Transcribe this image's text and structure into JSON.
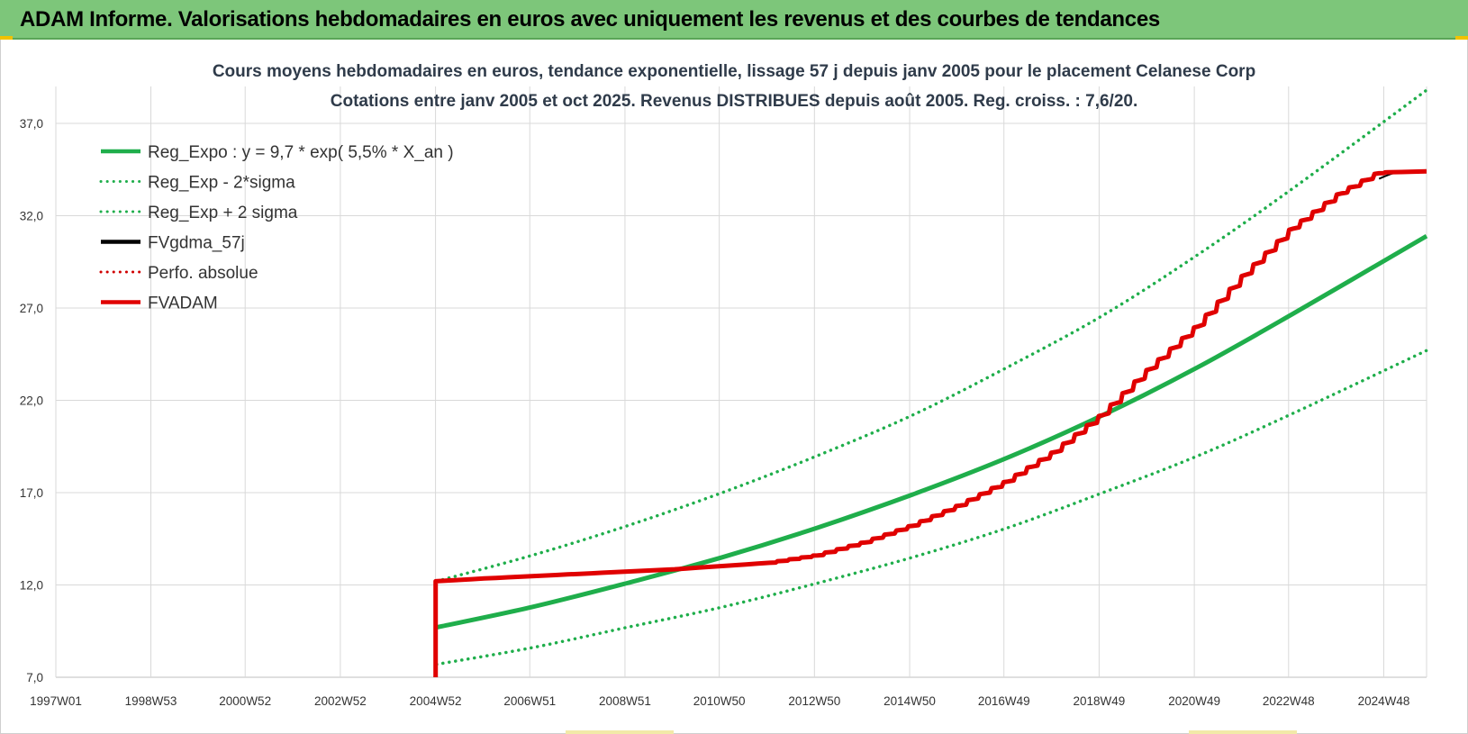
{
  "banner": {
    "title": "ADAM Informe. Valorisations hebdomadaires en euros avec uniquement les revenus et des courbes de tendances",
    "color": "#7dc67a"
  },
  "chart_data": {
    "type": "line",
    "title": "Cours moyens hebdomadaires en euros, tendance exponentielle, lissage 57 j depuis janv 2005  pour le placement Celanese Corp",
    "subtitle": "Cotations entre janv 2005 et oct 2025. Revenus DISTRIBUES depuis août 2005. Reg. croiss. : 7,6/20.",
    "x_tick_labels": [
      "1997W01",
      "1998W53",
      "2000W52",
      "2002W52",
      "2004W52",
      "2006W51",
      "2008W51",
      "2010W50",
      "2012W50",
      "2014W50",
      "2016W49",
      "2018W49",
      "2020W49",
      "2022W48",
      "2024W48"
    ],
    "y_tick_labels": [
      "7,0",
      "12,0",
      "17,0",
      "22,0",
      "27,0",
      "32,0",
      "37,0"
    ],
    "xlim": [
      1997.0,
      2025.8
    ],
    "ylim": [
      7,
      39
    ],
    "grid": true,
    "legend_position": "top-left",
    "series": [
      {
        "name": "Reg_Expo : y = 9,7 * exp( 5,5% *  X_an )",
        "color": "#1fae4b",
        "style": "solid",
        "width": 5,
        "x": [
          2005.0,
          2007.0,
          2009.0,
          2011.0,
          2013.0,
          2015.0,
          2017.0,
          2019.0,
          2021.0,
          2023.0,
          2025.8
        ],
        "y": [
          9.7,
          10.8,
          12.1,
          13.5,
          15.1,
          16.9,
          18.9,
          21.2,
          23.8,
          26.7,
          30.9
        ]
      },
      {
        "name": "Reg_Exp - 2*sigma",
        "color": "#1fae4b",
        "style": "dotted",
        "width": 3.5,
        "x": [
          2005.0,
          2007.0,
          2009.0,
          2011.0,
          2013.0,
          2015.0,
          2017.0,
          2019.0,
          2021.0,
          2023.0,
          2025.8
        ],
        "y": [
          7.7,
          8.6,
          9.7,
          10.8,
          12.1,
          13.5,
          15.1,
          17.0,
          19.0,
          21.3,
          24.7
        ]
      },
      {
        "name": "Reg_Exp + 2 sigma",
        "color": "#1fae4b",
        "style": "dotted",
        "width": 3.5,
        "x": [
          2005.0,
          2007.0,
          2009.0,
          2011.0,
          2013.0,
          2015.0,
          2017.0,
          2019.0,
          2021.0,
          2023.0,
          2025.8
        ],
        "y": [
          12.2,
          13.6,
          15.2,
          17.0,
          19.0,
          21.2,
          23.8,
          26.6,
          29.9,
          33.5,
          38.8
        ]
      },
      {
        "name": "FVgdma_57j",
        "color": "#000000",
        "style": "solid",
        "width": 2,
        "x": [
          2024.8,
          2025.1,
          2025.4,
          2025.8
        ],
        "y": [
          34.0,
          34.3,
          34.4,
          34.4
        ]
      },
      {
        "name": "Perfo. absolue",
        "color": "#d00000",
        "style": "dotted",
        "width": 2.5,
        "x": [],
        "y": []
      },
      {
        "name": "FVADAM",
        "color": "#e00000",
        "style": "solid",
        "width": 5,
        "x": [
          2004.98,
          2004.98,
          2006.0,
          2008.0,
          2010.0,
          2012.0,
          2013.0,
          2014.0,
          2015.0,
          2016.0,
          2017.0,
          2018.0,
          2019.0,
          2020.0,
          2021.0,
          2022.0,
          2023.0,
          2024.0,
          2024.8,
          2025.0,
          2025.8
        ],
        "y": [
          7.0,
          12.2,
          12.35,
          12.6,
          12.85,
          13.2,
          13.6,
          14.3,
          15.2,
          16.3,
          17.6,
          19.2,
          21.2,
          23.7,
          26.0,
          28.8,
          31.3,
          33.2,
          34.3,
          34.35,
          34.4
        ]
      }
    ]
  },
  "colors": {
    "grid": "#d9d9d9",
    "axis": "#bfbfbf",
    "title": "#2f3b4a"
  }
}
